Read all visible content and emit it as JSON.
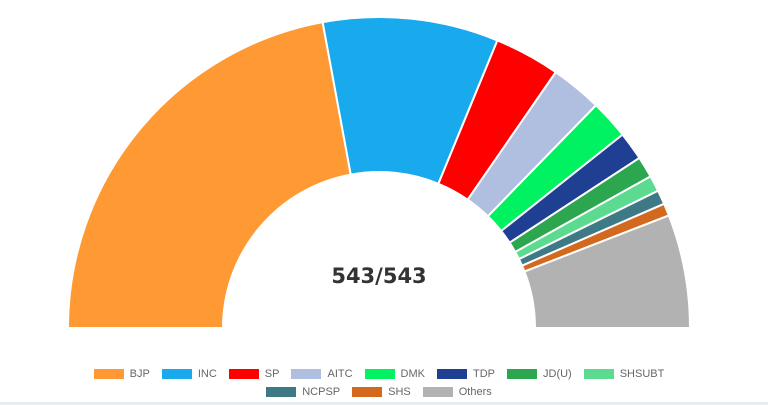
{
  "chart_data": {
    "type": "pie",
    "variant": "half-doughnut",
    "center_label": "543/543",
    "categories": [
      "BJP",
      "INC",
      "SP",
      "AITC",
      "DMK",
      "TDP",
      "JD(U)",
      "SHSUBT",
      "NCPSP",
      "SHS",
      "Others"
    ],
    "values": [
      240,
      99,
      37,
      29,
      22,
      16,
      12,
      9,
      8,
      7,
      64
    ],
    "colors": [
      "#FF9933",
      "#19AAED",
      "#FF0000",
      "#B0BEE0",
      "#00F260",
      "#1F3F93",
      "#2DA650",
      "#5CDA8F",
      "#3E7A86",
      "#D2691E",
      "#B2B2B2"
    ],
    "legend_position": "bottom"
  }
}
